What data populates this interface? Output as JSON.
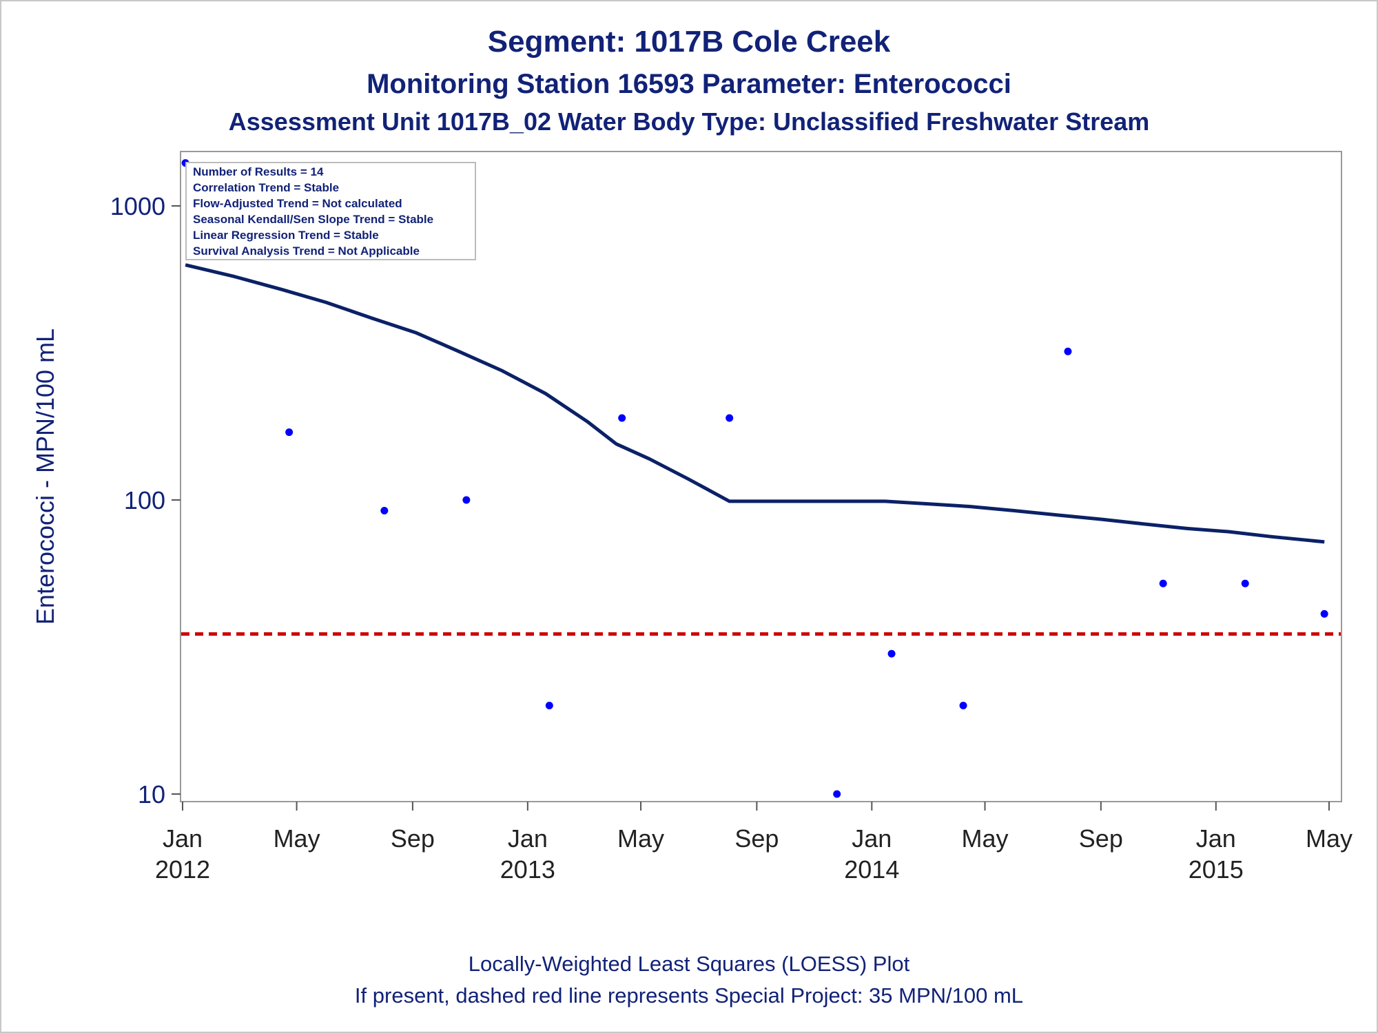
{
  "header": {
    "title": "Segment: 1017B  Cole Creek",
    "subtitle": "Monitoring Station 16593 Parameter: Enterococci",
    "subtitle2": "Assessment Unit 1017B_02   Water Body Type: Unclassified Freshwater Stream"
  },
  "footer": {
    "line1": "Locally-Weighted Least Squares (LOESS) Plot",
    "line2": "If present, dashed red line represents Special Project: 35 MPN/100 mL"
  },
  "colors": {
    "text": "#112277",
    "loess": "#0b2167",
    "points": "#0000ff",
    "reference": "#cc0000",
    "frame": "#999999"
  },
  "chart_data": {
    "type": "scatter",
    "ylabel": "Enterococci - MPN/100 mL",
    "xlabel": "",
    "y_scale": "log",
    "ylim": [
      10,
      1400
    ],
    "xlim": [
      "2012-01-01",
      "2015-05-01"
    ],
    "y_ticks": [
      {
        "value": 10,
        "label": "10"
      },
      {
        "value": 100,
        "label": "100"
      },
      {
        "value": 1000,
        "label": "1000"
      }
    ],
    "x_ticks": [
      {
        "date": "2012-01-01",
        "label": "Jan",
        "year": "2012"
      },
      {
        "date": "2012-05-01",
        "label": "May",
        "year": ""
      },
      {
        "date": "2012-09-01",
        "label": "Sep",
        "year": ""
      },
      {
        "date": "2013-01-01",
        "label": "Jan",
        "year": "2013"
      },
      {
        "date": "2013-05-01",
        "label": "May",
        "year": ""
      },
      {
        "date": "2013-09-01",
        "label": "Sep",
        "year": ""
      },
      {
        "date": "2014-01-01",
        "label": "Jan",
        "year": "2014"
      },
      {
        "date": "2014-05-01",
        "label": "May",
        "year": ""
      },
      {
        "date": "2014-09-01",
        "label": "Sep",
        "year": ""
      },
      {
        "date": "2015-01-01",
        "label": "Jan",
        "year": "2015"
      },
      {
        "date": "2015-05-01",
        "label": "May",
        "year": ""
      }
    ],
    "points": [
      {
        "date": "2012-01-04",
        "value": 1400
      },
      {
        "date": "2012-04-23",
        "value": 170
      },
      {
        "date": "2012-08-02",
        "value": 92
      },
      {
        "date": "2012-10-28",
        "value": 100
      },
      {
        "date": "2013-01-24",
        "value": 20
      },
      {
        "date": "2013-04-11",
        "value": 190
      },
      {
        "date": "2013-08-03",
        "value": 190
      },
      {
        "date": "2013-11-25",
        "value": 10
      },
      {
        "date": "2014-01-22",
        "value": 30
      },
      {
        "date": "2014-04-08",
        "value": 20
      },
      {
        "date": "2014-07-28",
        "value": 320
      },
      {
        "date": "2014-11-06",
        "value": 52
      },
      {
        "date": "2015-02-01",
        "value": 52
      },
      {
        "date": "2015-04-26",
        "value": 41
      }
    ],
    "loess": [
      {
        "date": "2012-01-04",
        "value": 630
      },
      {
        "date": "2012-02-25",
        "value": 575
      },
      {
        "date": "2012-04-15",
        "value": 520
      },
      {
        "date": "2012-06-01",
        "value": 470
      },
      {
        "date": "2012-07-20",
        "value": 415
      },
      {
        "date": "2012-09-05",
        "value": 370
      },
      {
        "date": "2012-10-20",
        "value": 320
      },
      {
        "date": "2012-12-05",
        "value": 275
      },
      {
        "date": "2013-01-20",
        "value": 230
      },
      {
        "date": "2013-03-05",
        "value": 185
      },
      {
        "date": "2013-04-05",
        "value": 155
      },
      {
        "date": "2013-05-10",
        "value": 138
      },
      {
        "date": "2013-06-20",
        "value": 118
      },
      {
        "date": "2013-08-03",
        "value": 99
      },
      {
        "date": "2013-09-01",
        "value": 99
      },
      {
        "date": "2013-10-15",
        "value": 99
      },
      {
        "date": "2013-12-01",
        "value": 99
      },
      {
        "date": "2014-01-15",
        "value": 99
      },
      {
        "date": "2014-03-01",
        "value": 97
      },
      {
        "date": "2014-04-15",
        "value": 95
      },
      {
        "date": "2014-06-01",
        "value": 92
      },
      {
        "date": "2014-07-15",
        "value": 89
      },
      {
        "date": "2014-09-01",
        "value": 86
      },
      {
        "date": "2014-10-15",
        "value": 83
      },
      {
        "date": "2014-12-01",
        "value": 80
      },
      {
        "date": "2015-01-15",
        "value": 78
      },
      {
        "date": "2015-03-01",
        "value": 75
      },
      {
        "date": "2015-04-26",
        "value": 72
      }
    ],
    "reference_line": {
      "value": 35
    },
    "legend_box": {
      "placement": "top-left",
      "lines": [
        "Number of Results = 14",
        "Correlation Trend = Stable",
        "Flow-Adjusted Trend = Not calculated",
        "Seasonal Kendall/Sen Slope Trend = Stable",
        "Linear Regression Trend = Stable",
        "Survival Analysis Trend = Not Applicable"
      ]
    }
  }
}
